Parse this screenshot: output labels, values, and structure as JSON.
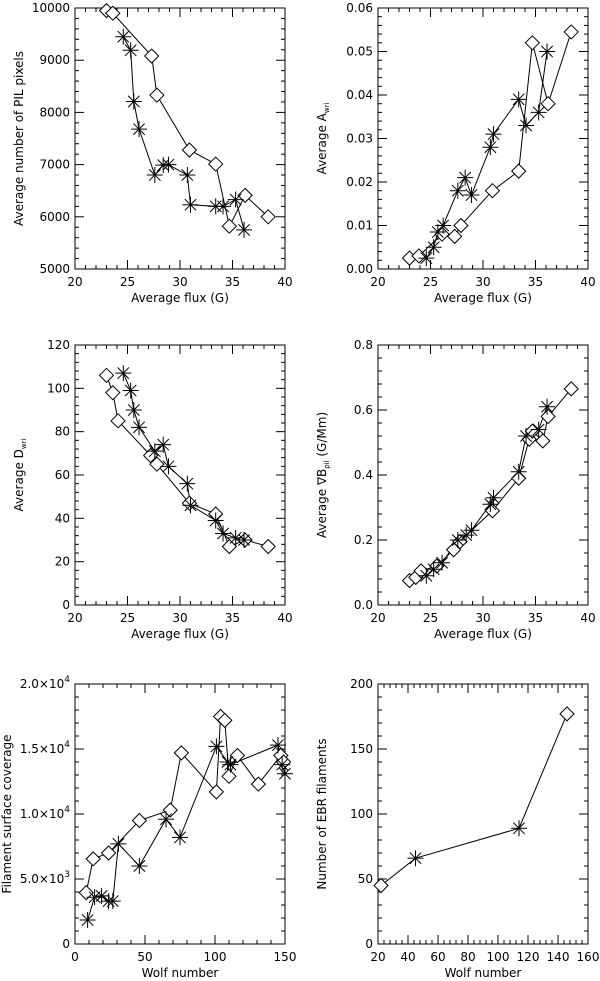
{
  "chart_data": [
    {
      "type": "line",
      "id": "p1",
      "xlabel": "Average flux (G)",
      "ylabel": "Average number of PIL pixels",
      "xlim": [
        20,
        40
      ],
      "ylim": [
        5000,
        10000
      ],
      "xticks": [
        20,
        25,
        30,
        35,
        40
      ],
      "xtick_labels": [
        "20",
        "25",
        "30",
        "35",
        "40"
      ],
      "yticks": [
        5000,
        6000,
        7000,
        8000,
        9000,
        10000
      ],
      "ytick_labels": [
        "5000",
        "6000",
        "7000",
        "8000",
        "9000",
        "10000"
      ],
      "series": [
        {
          "name": "diamonds",
          "marker": "diamond",
          "x": [
            23.0,
            23.6,
            27.3,
            27.8,
            30.9,
            33.4,
            34.7,
            36.2,
            38.4
          ],
          "y": [
            9950,
            9900,
            9080,
            8330,
            7280,
            7010,
            5820,
            6410,
            6000
          ]
        },
        {
          "name": "asterisks",
          "marker": "asterisk",
          "x": [
            24.6,
            25.3,
            25.6,
            26.1,
            27.6,
            28.4,
            28.9,
            30.7,
            31.0,
            33.4,
            34.1,
            35.3,
            36.1
          ],
          "y": [
            9450,
            9190,
            8210,
            7680,
            6800,
            6990,
            7000,
            6800,
            6230,
            6200,
            6200,
            6330,
            5750
          ]
        }
      ]
    },
    {
      "type": "line",
      "id": "p2",
      "xlabel": "Average flux (G)",
      "ylabel": "Average A",
      "ylabel_sub": "wri",
      "xlim": [
        20,
        40
      ],
      "ylim": [
        0,
        0.06
      ],
      "xticks": [
        20,
        25,
        30,
        35,
        40
      ],
      "xtick_labels": [
        "20",
        "25",
        "30",
        "35",
        "40"
      ],
      "yticks": [
        0,
        0.01,
        0.02,
        0.03,
        0.04,
        0.05,
        0.06
      ],
      "ytick_labels": [
        "0.00",
        "0.01",
        "0.02",
        "0.03",
        "0.04",
        "0.05",
        "0.06"
      ],
      "series": [
        {
          "name": "diamonds",
          "marker": "diamond",
          "x": [
            23.0,
            23.9,
            26.1,
            27.3,
            27.9,
            30.9,
            33.4,
            34.7,
            36.2,
            38.4
          ],
          "y": [
            0.0025,
            0.003,
            0.008,
            0.0075,
            0.01,
            0.018,
            0.0225,
            0.052,
            0.038,
            0.0545
          ]
        },
        {
          "name": "asterisks",
          "marker": "asterisk",
          "x": [
            24.6,
            25.3,
            25.7,
            26.2,
            27.6,
            28.3,
            28.9,
            30.7,
            31.0,
            33.4,
            34.1,
            35.3,
            36.1
          ],
          "y": [
            0.0025,
            0.005,
            0.0085,
            0.01,
            0.018,
            0.021,
            0.017,
            0.028,
            0.031,
            0.039,
            0.033,
            0.036,
            0.05
          ]
        }
      ]
    },
    {
      "type": "line",
      "id": "p3",
      "xlabel": "Average flux (G)",
      "ylabel": "Average D",
      "ylabel_sub": "wri",
      "xlim": [
        20,
        40
      ],
      "ylim": [
        0,
        120
      ],
      "xticks": [
        20,
        25,
        30,
        35,
        40
      ],
      "xtick_labels": [
        "20",
        "25",
        "30",
        "35",
        "40"
      ],
      "yticks": [
        0,
        20,
        40,
        60,
        80,
        100,
        120
      ],
      "ytick_labels": [
        "0",
        "20",
        "40",
        "60",
        "80",
        "100",
        "120"
      ],
      "series": [
        {
          "name": "diamonds",
          "marker": "diamond",
          "x": [
            23.0,
            23.6,
            24.1,
            27.2,
            27.8,
            30.9,
            33.4,
            34.7,
            36.2,
            38.4
          ],
          "y": [
            106,
            98,
            85,
            69,
            65,
            47,
            42,
            27,
            30,
            27
          ]
        },
        {
          "name": "asterisks",
          "marker": "asterisk",
          "x": [
            24.6,
            25.3,
            25.6,
            26.1,
            27.6,
            28.4,
            28.9,
            30.7,
            31.0,
            33.4,
            34.1,
            35.3,
            36.1
          ],
          "y": [
            107,
            99,
            90,
            82,
            71,
            74,
            64,
            56,
            46,
            39,
            33,
            31,
            30
          ]
        }
      ]
    },
    {
      "type": "line",
      "id": "p4",
      "xlabel": "Average flux (G)",
      "ylabel": "Average ∇B",
      "ylabel_sub": "pil",
      "ylabel_suffix": " (G/Mm)",
      "xlim": [
        20,
        40
      ],
      "ylim": [
        0,
        0.8
      ],
      "xticks": [
        20,
        25,
        30,
        35,
        40
      ],
      "xtick_labels": [
        "20",
        "25",
        "30",
        "35",
        "40"
      ],
      "yticks": [
        0,
        0.2,
        0.4,
        0.6,
        0.8
      ],
      "ytick_labels": [
        "0.0",
        "0.2",
        "0.4",
        "0.6",
        "0.8"
      ],
      "series": [
        {
          "name": "diamonds",
          "marker": "diamond",
          "x": [
            23.0,
            23.6,
            24.1,
            25.6,
            27.2,
            27.8,
            30.9,
            33.4,
            34.4,
            34.7,
            35.7,
            36.2,
            38.4
          ],
          "y": [
            0.075,
            0.085,
            0.105,
            0.12,
            0.17,
            0.195,
            0.29,
            0.39,
            0.51,
            0.535,
            0.505,
            0.58,
            0.665
          ]
        },
        {
          "name": "asterisks",
          "marker": "asterisk",
          "x": [
            24.6,
            25.3,
            26.1,
            27.6,
            28.4,
            28.9,
            30.7,
            31.0,
            33.4,
            34.1,
            35.3,
            36.1
          ],
          "y": [
            0.09,
            0.11,
            0.13,
            0.2,
            0.215,
            0.23,
            0.31,
            0.33,
            0.41,
            0.52,
            0.54,
            0.61
          ]
        }
      ]
    },
    {
      "type": "line",
      "id": "p5",
      "xlabel": "Wolf number",
      "ylabel": "Filament surface coverage",
      "xlim": [
        0,
        150
      ],
      "ylim": [
        0,
        20000
      ],
      "xticks": [
        0,
        50,
        100,
        150
      ],
      "xtick_labels": [
        "0",
        "50",
        "100",
        "150"
      ],
      "yticks": [
        0,
        5000,
        10000,
        15000,
        20000
      ],
      "ytick_labels": [
        {
          "mantissa": "0",
          "exp": ""
        },
        {
          "mantissa": "5.0×10",
          "exp": "3"
        },
        {
          "mantissa": "1.0×10",
          "exp": "4"
        },
        {
          "mantissa": "1.5×10",
          "exp": "4"
        },
        {
          "mantissa": "2.0×10",
          "exp": "4"
        }
      ],
      "series": [
        {
          "name": "diamonds",
          "marker": "diamond",
          "x": [
            8,
            13,
            24,
            46,
            68,
            76,
            101,
            104,
            107,
            110,
            116,
            131,
            147,
            149
          ],
          "y": [
            3950,
            6550,
            7000,
            9500,
            10300,
            14700,
            11700,
            17500,
            17200,
            12900,
            14500,
            12300,
            14500,
            14000
          ]
        },
        {
          "name": "asterisks",
          "marker": "asterisk",
          "x": [
            9,
            14,
            19,
            24,
            27,
            31,
            46,
            65,
            75,
            101,
            109,
            111,
            145,
            148,
            150
          ],
          "y": [
            1850,
            3600,
            3700,
            3300,
            3300,
            7700,
            6000,
            9600,
            8200,
            15200,
            14000,
            13800,
            15300,
            13800,
            13100
          ]
        }
      ]
    },
    {
      "type": "line",
      "id": "p6",
      "xlabel": "Wolf number",
      "ylabel": "Number of EBR filaments",
      "xlim": [
        20,
        160
      ],
      "ylim": [
        0,
        200
      ],
      "xticks": [
        20,
        40,
        60,
        80,
        100,
        120,
        140,
        160
      ],
      "xtick_labels": [
        "20",
        "40",
        "60",
        "80",
        "100",
        "120",
        "140",
        "160"
      ],
      "yticks": [
        0,
        50,
        100,
        150,
        200
      ],
      "ytick_labels": [
        "0",
        "50",
        "100",
        "150",
        "200"
      ],
      "series": [
        {
          "name": "diamonds",
          "marker": "diamond",
          "x": [
            22,
            146
          ],
          "y": [
            45,
            177
          ]
        },
        {
          "name": "asterisks",
          "marker": "asterisk",
          "x": [
            45,
            114
          ],
          "y": [
            66,
            89
          ]
        }
      ],
      "connector": {
        "x": [
          22,
          45,
          114,
          146
        ],
        "y": [
          45,
          66,
          89,
          177
        ]
      }
    }
  ]
}
